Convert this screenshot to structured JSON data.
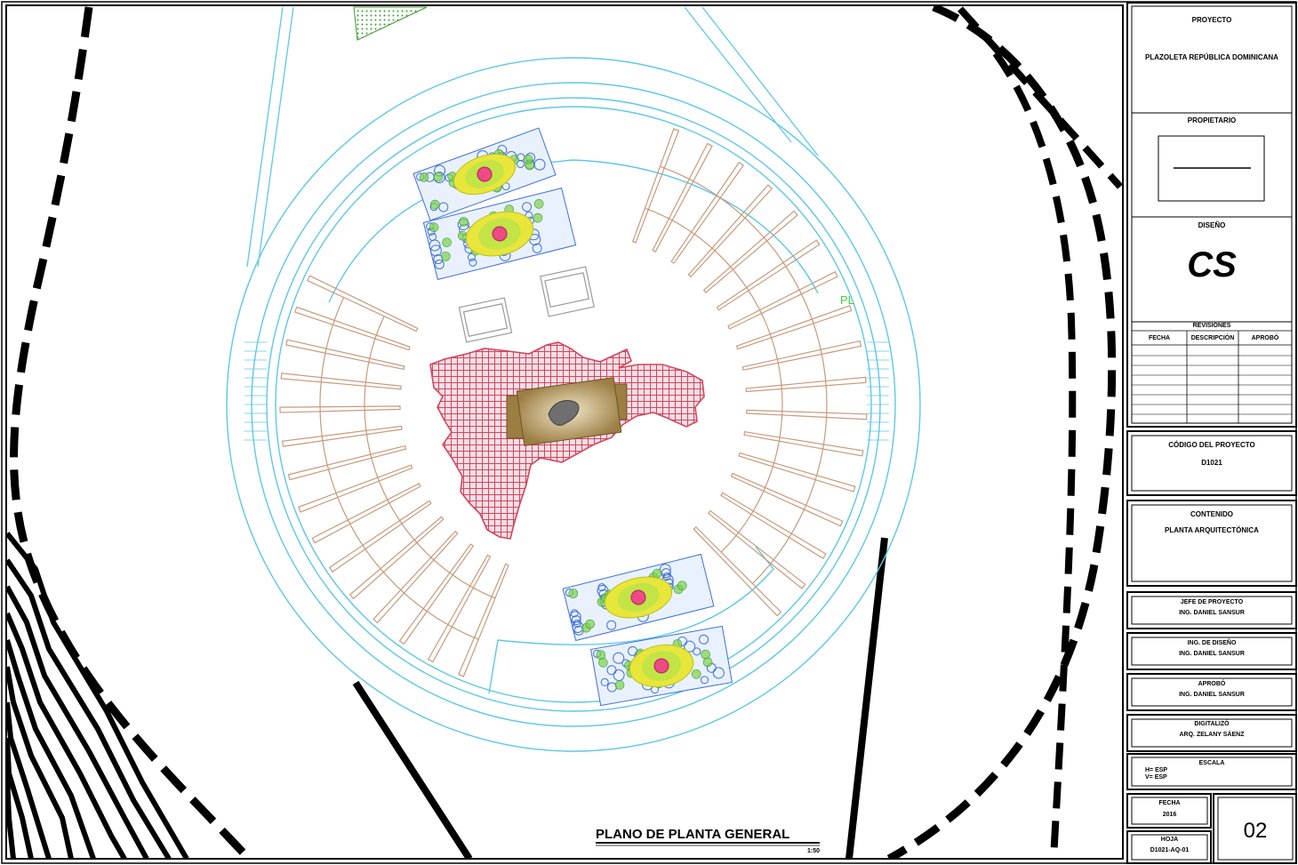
{
  "drawing": {
    "title": "PLANO DE PLANTA GENERAL",
    "scale": "1:50",
    "pl_marker": "PL"
  },
  "title_block": {
    "proyecto_label": "PROYECTO",
    "proyecto_value": "PLAZOLETA REPÚBLICA DOMINICANA",
    "propietario_label": "PROPIETARIO",
    "diseno_label": "DISEÑO",
    "logo_text": "CS",
    "revisiones_label": "REVISIONES",
    "revisiones_columns": [
      "FECHA",
      "DESCRIPCIÓN",
      "APROBÓ"
    ],
    "codigo_label": "CÓDIGO DEL PROYECTO",
    "codigo_value": "D1021",
    "contenido_label": "CONTENIDO",
    "contenido_value": "PLANTA ARQUITECTÓNICA",
    "jefe_label": "JEFE DE PROYECTO",
    "jefe_value": "ING. DANIEL SANSUR",
    "ing_diseno_label": "ING. DE DISEÑO",
    "ing_diseno_value": "ING. DANIEL SANSUR",
    "aprobo_label": "APROBÓ",
    "aprobo_value": "ING. DANIEL SANSUR",
    "digitalizo_label": "DIGITALIZÓ",
    "digitalizo_value": "ARQ. ZELANY SÁENZ",
    "escala_label": "ESCALA",
    "escala_h": "H= ESP",
    "escala_v": "V= ESP",
    "fecha_label": "FECHA",
    "fecha_value": "2016",
    "hoja_label": "HOJA",
    "hoja_value": "D1021-AQ-01",
    "sheet_number": "02"
  },
  "colors": {
    "cyan_line": "#5ec8e6",
    "brown_line": "#c89a7c",
    "map_red": "#d2465e",
    "plant_green": "#7ad14a",
    "plant_blue": "#3f6fd8",
    "plant_yellow": "#e8e63a",
    "plant_pink": "#ee4a86",
    "plinth": "#b69a63"
  }
}
